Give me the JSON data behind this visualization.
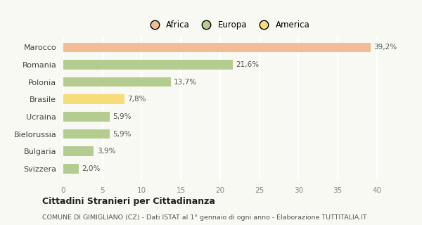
{
  "categories": [
    "Marocco",
    "Romania",
    "Polonia",
    "Brasile",
    "Ucraina",
    "Bielorussia",
    "Bulgaria",
    "Svizzera"
  ],
  "values": [
    39.2,
    21.6,
    13.7,
    7.8,
    5.9,
    5.9,
    3.9,
    2.0
  ],
  "labels": [
    "39,2%",
    "21,6%",
    "13,7%",
    "7,8%",
    "5,9%",
    "5,9%",
    "3,9%",
    "2,0%"
  ],
  "colors": [
    "#f2bc94",
    "#b5cc91",
    "#b5cc91",
    "#f7dc7a",
    "#b5cc91",
    "#b5cc91",
    "#b5cc91",
    "#b5cc91"
  ],
  "legend_items": [
    {
      "label": "Africa",
      "color": "#f2bc94"
    },
    {
      "label": "Europa",
      "color": "#b5cc91"
    },
    {
      "label": "America",
      "color": "#f7dc7a"
    }
  ],
  "title": "Cittadini Stranieri per Cittadinanza",
  "subtitle": "COMUNE DI GIMIGLIANO (CZ) - Dati ISTAT al 1° gennaio di ogni anno - Elaborazione TUTTITALIA.IT",
  "xlim": [
    0,
    42
  ],
  "xticks": [
    0,
    5,
    10,
    15,
    20,
    25,
    30,
    35,
    40
  ],
  "background_color": "#f9f9f3",
  "grid_color": "#ffffff"
}
